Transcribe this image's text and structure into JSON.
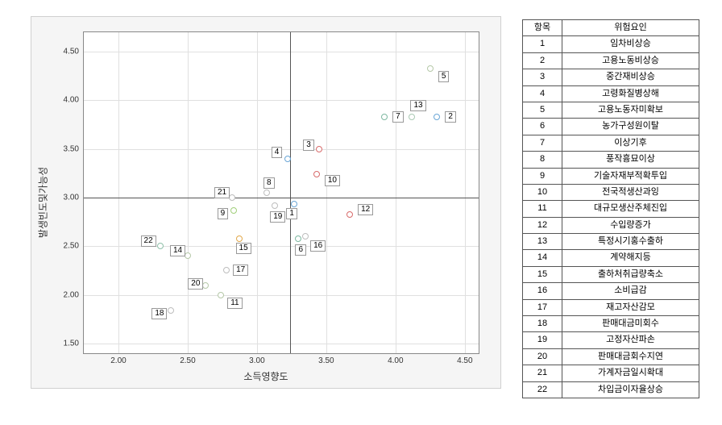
{
  "chart": {
    "type": "scatter",
    "xlabel": "소득영향도",
    "ylabel": "발생빈도및가능성",
    "xlim": [
      1.75,
      4.6
    ],
    "ylim": [
      1.4,
      4.7
    ],
    "xticks": [
      2.0,
      2.5,
      3.0,
      3.5,
      4.0,
      4.5
    ],
    "yticks": [
      1.5,
      2.0,
      2.5,
      3.0,
      3.5,
      4.0,
      4.5
    ],
    "xtick_labels": [
      "2.00",
      "2.50",
      "3.00",
      "3.50",
      "4.00",
      "4.50"
    ],
    "ytick_labels": [
      "1.50",
      "2.00",
      "2.50",
      "3.00",
      "3.50",
      "4.00",
      "4.50"
    ],
    "quad_x": 3.24,
    "quad_y": 3.0,
    "grid_color": "#e0e0e0",
    "border_color": "#888",
    "bg_color": "#f5f5f5",
    "marker_size": 8,
    "points": [
      {
        "id": "1",
        "x": 3.27,
        "y": 2.93,
        "color": "#6aa6d6",
        "lbl_dx": -10,
        "lbl_dy": 12
      },
      {
        "id": "2",
        "x": 4.3,
        "y": 3.83,
        "color": "#6aa6d6",
        "lbl_dx": 10,
        "lbl_dy": 0
      },
      {
        "id": "3",
        "x": 3.45,
        "y": 3.5,
        "color": "#d86b6b",
        "lbl_dx": -20,
        "lbl_dy": -5
      },
      {
        "id": "4",
        "x": 3.22,
        "y": 3.4,
        "color": "#6aa6d6",
        "lbl_dx": -20,
        "lbl_dy": -8
      },
      {
        "id": "5",
        "x": 4.25,
        "y": 4.33,
        "color": "#b5c8a8",
        "lbl_dx": 10,
        "lbl_dy": 10
      },
      {
        "id": "6",
        "x": 3.3,
        "y": 2.58,
        "color": "#7db8a0",
        "lbl_dx": -4,
        "lbl_dy": 14
      },
      {
        "id": "7",
        "x": 3.92,
        "y": 3.83,
        "color": "#7db8a0",
        "lbl_dx": 10,
        "lbl_dy": 0
      },
      {
        "id": "8",
        "x": 3.07,
        "y": 3.05,
        "color": "#bdbdbd",
        "lbl_dx": -4,
        "lbl_dy": -12
      },
      {
        "id": "9",
        "x": 2.83,
        "y": 2.87,
        "color": "#a0cf7a",
        "lbl_dx": -20,
        "lbl_dy": 4
      },
      {
        "id": "10",
        "x": 3.43,
        "y": 3.24,
        "color": "#d86b6b",
        "lbl_dx": 10,
        "lbl_dy": 8
      },
      {
        "id": "11",
        "x": 2.74,
        "y": 2.0,
        "color": "#b5c8a8",
        "lbl_dx": 8,
        "lbl_dy": 10
      },
      {
        "id": "12",
        "x": 3.67,
        "y": 2.83,
        "color": "#d86b6b",
        "lbl_dx": 10,
        "lbl_dy": -6
      },
      {
        "id": "13",
        "x": 4.12,
        "y": 3.83,
        "color": "#a9c9b3",
        "lbl_dx": -2,
        "lbl_dy": -14
      },
      {
        "id": "14",
        "x": 2.5,
        "y": 2.4,
        "color": "#b5c8a8",
        "lbl_dx": -22,
        "lbl_dy": -6
      },
      {
        "id": "15",
        "x": 2.87,
        "y": 2.58,
        "color": "#e2a84a",
        "lbl_dx": -4,
        "lbl_dy": 12
      },
      {
        "id": "16",
        "x": 3.35,
        "y": 2.6,
        "color": "#bdbdbd",
        "lbl_dx": 6,
        "lbl_dy": 12
      },
      {
        "id": "17",
        "x": 2.78,
        "y": 2.25,
        "color": "#bdbdbd",
        "lbl_dx": 8,
        "lbl_dy": 0
      },
      {
        "id": "18",
        "x": 2.38,
        "y": 1.84,
        "color": "#bdbdbd",
        "lbl_dx": -24,
        "lbl_dy": 4
      },
      {
        "id": "19",
        "x": 3.13,
        "y": 2.92,
        "color": "#bdbdbd",
        "lbl_dx": -6,
        "lbl_dy": 14
      },
      {
        "id": "20",
        "x": 2.63,
        "y": 2.1,
        "color": "#b5c8a8",
        "lbl_dx": -22,
        "lbl_dy": -2
      },
      {
        "id": "21",
        "x": 2.82,
        "y": 3.0,
        "color": "#bdbdbd",
        "lbl_dx": -22,
        "lbl_dy": -6
      },
      {
        "id": "22",
        "x": 2.3,
        "y": 2.5,
        "color": "#8fc0a9",
        "lbl_dx": -24,
        "lbl_dy": -6
      }
    ]
  },
  "table": {
    "header": {
      "col1": "항목",
      "col2": "위험요인"
    },
    "rows": [
      {
        "n": "1",
        "t": "임차비상승"
      },
      {
        "n": "2",
        "t": "고용노동비상승"
      },
      {
        "n": "3",
        "t": "중간재비상승"
      },
      {
        "n": "4",
        "t": "고령화질병상해"
      },
      {
        "n": "5",
        "t": "고용노동자미확보"
      },
      {
        "n": "6",
        "t": "농가구성원이탈"
      },
      {
        "n": "7",
        "t": "이상기후"
      },
      {
        "n": "8",
        "t": "풍작흉묘이상"
      },
      {
        "n": "9",
        "t": "기술자재부적확투입"
      },
      {
        "n": "10",
        "t": "전국적생산과잉"
      },
      {
        "n": "11",
        "t": "대규모생산주체진입"
      },
      {
        "n": "12",
        "t": "수입량증가"
      },
      {
        "n": "13",
        "t": "특정시기홍수출하"
      },
      {
        "n": "14",
        "t": "계약해지등"
      },
      {
        "n": "15",
        "t": "출하처취급량축소"
      },
      {
        "n": "16",
        "t": "소비급감"
      },
      {
        "n": "17",
        "t": "재고자산감모"
      },
      {
        "n": "18",
        "t": "판매대금미회수"
      },
      {
        "n": "19",
        "t": "고정자산파손"
      },
      {
        "n": "20",
        "t": "판매대금회수지연"
      },
      {
        "n": "21",
        "t": "가계자금일시확대"
      },
      {
        "n": "22",
        "t": "차입금이자율상승"
      }
    ]
  }
}
